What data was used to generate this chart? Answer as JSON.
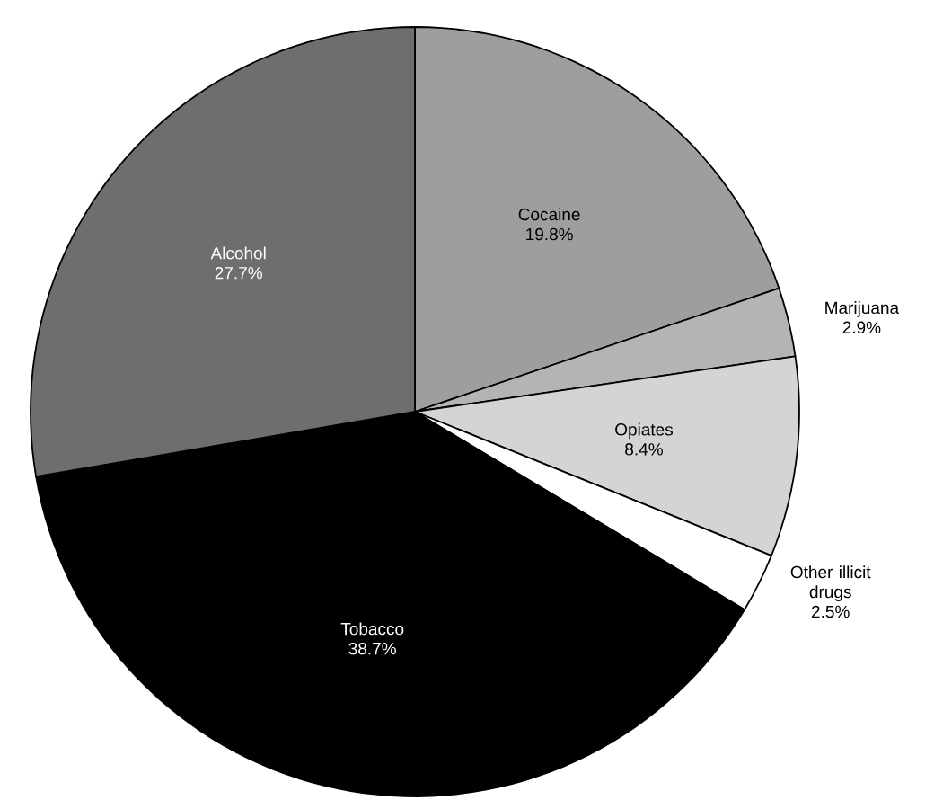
{
  "chart_data": {
    "type": "pie",
    "categories": [
      "Cocaine",
      "Marijuana",
      "Opiates",
      "Other illicit drugs",
      "Tobacco",
      "Alcohol"
    ],
    "values": [
      19.8,
      2.9,
      8.4,
      2.5,
      38.7,
      27.7
    ],
    "colors": [
      "#9e9e9e",
      "#b4b4b4",
      "#d4d4d4",
      "#ffffff",
      "#000000",
      "#6e6e6e"
    ],
    "value_labels": [
      "19.8%",
      "2.9%",
      "8.4%",
      "2.5%",
      "38.7%",
      "27.7%"
    ]
  }
}
